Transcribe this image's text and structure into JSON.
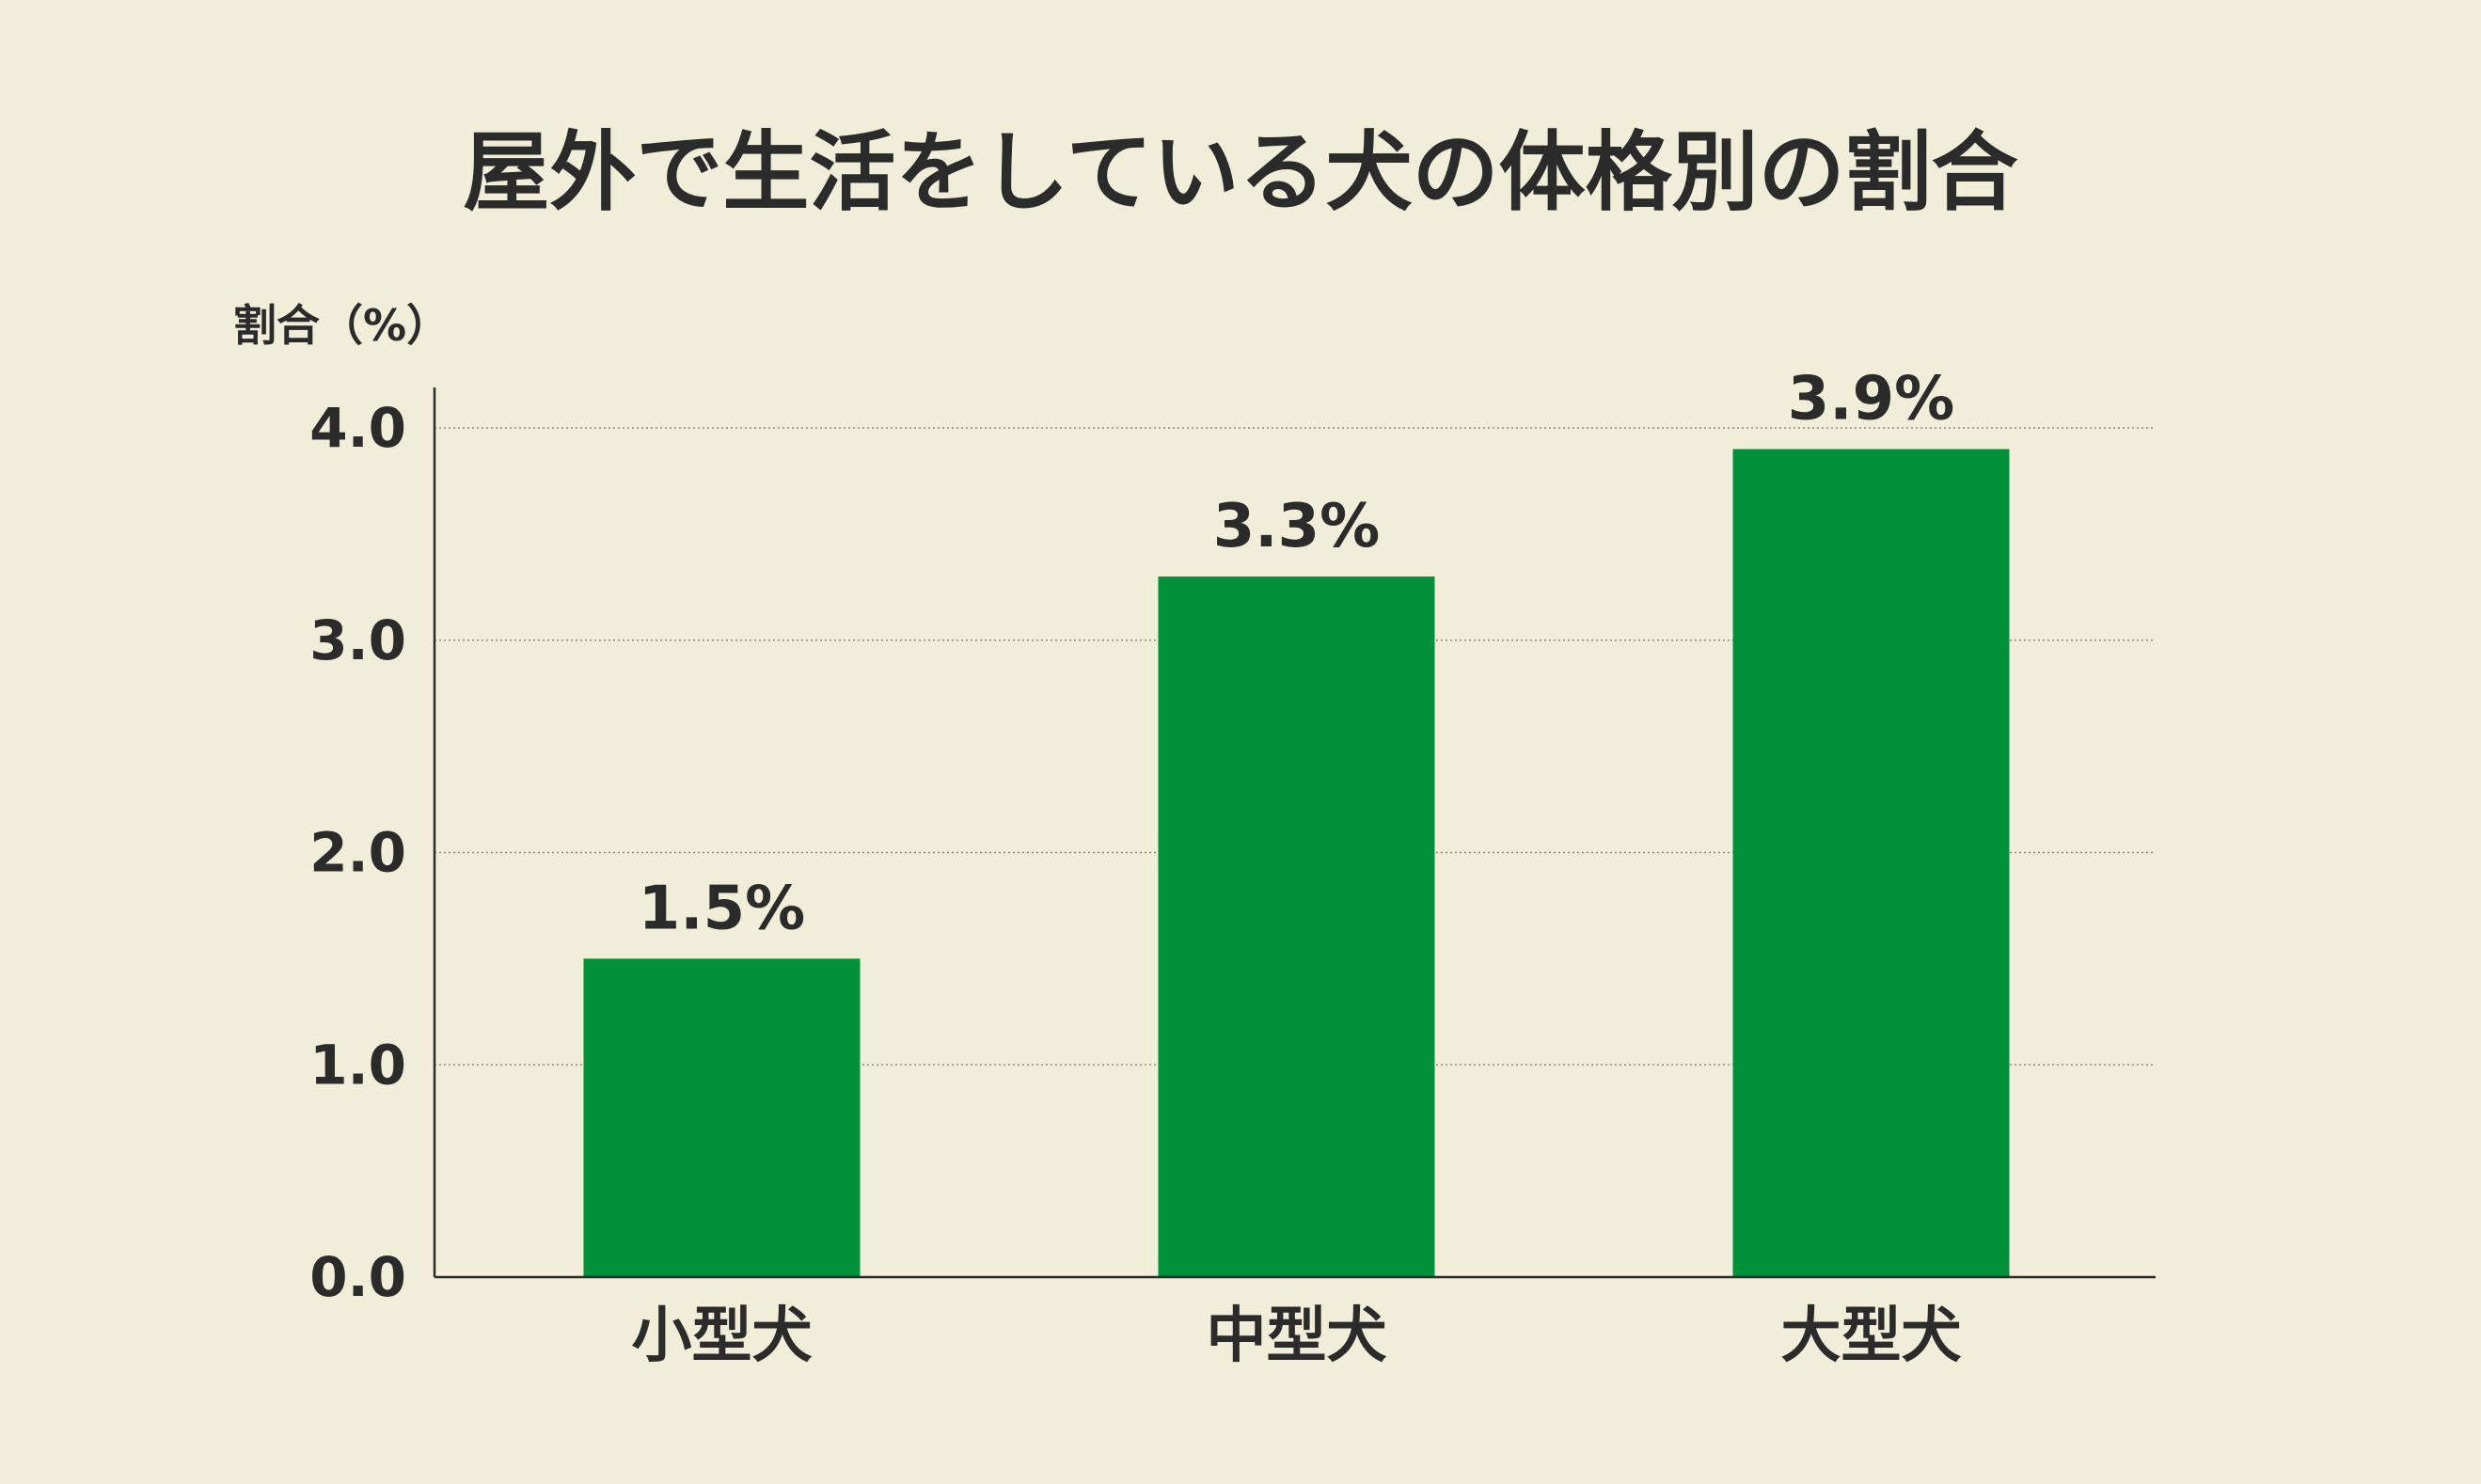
{
  "chart_data": {
    "type": "bar",
    "title": "屋外で生活をしている犬の体格別の割合",
    "ylabel": "割合（%）",
    "xlabel": "",
    "categories": [
      "小型犬",
      "中型犬",
      "大型犬"
    ],
    "values": [
      1.5,
      3.3,
      3.9
    ],
    "value_labels": [
      "1.5%",
      "3.3%",
      "3.9%"
    ],
    "ylim": [
      0,
      4.0
    ],
    "yticks": [
      0.0,
      1.0,
      2.0,
      3.0,
      4.0
    ],
    "ytick_labels": [
      "0.0",
      "1.0",
      "2.0",
      "3.0",
      "4.0"
    ],
    "grid": "horizontal-dotted",
    "legend": "none",
    "bar_color": "#00913a",
    "background_color": "#f0eed8",
    "text_color": "#2b2b2b"
  }
}
